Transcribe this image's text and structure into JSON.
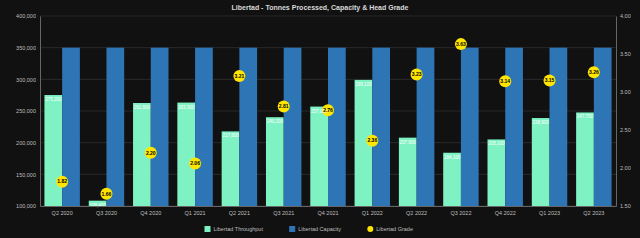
{
  "chart_data": {
    "type": "bar",
    "title": "Libertad - Tonnes Processed, Capacity & Head Grade",
    "categories": [
      "Q2 2020",
      "Q3 2020",
      "Q4 2020",
      "Q1 2021",
      "Q2 2021",
      "Q3 2021",
      "Q4 2021",
      "Q1 2022",
      "Q2 2022",
      "Q3 2022",
      "Q4 2022",
      "Q1 2023",
      "Q2 2023"
    ],
    "series": [
      {
        "name": "Libertad Throughput",
        "type": "bar",
        "color": "#7ff2c4",
        "data_labels": true,
        "values": [
          275200,
          108400,
          262600,
          263300,
          217800,
          240200,
          257000,
          299100,
          207900,
          184100,
          205100,
          238900,
          247700
        ],
        "value_labels": [
          "275,200",
          "108,400",
          "262,600",
          "263,300",
          "217,800",
          "240,200",
          "257,000",
          "299,100",
          "207,900",
          "184,100",
          "205,100",
          "238,900",
          "247,700"
        ]
      },
      {
        "name": "Libertad Capacity",
        "type": "bar",
        "color": "#2e75b6",
        "data_labels": false,
        "values": [
          350000,
          350000,
          350000,
          350000,
          350000,
          350000,
          350000,
          350000,
          350000,
          350000,
          350000,
          350000,
          350000
        ]
      },
      {
        "name": "Libertad Grade",
        "type": "scatter",
        "axis": "y2",
        "marker": "circle",
        "color": "#ffe600",
        "data_labels": true,
        "values": [
          1.82,
          1.66,
          2.2,
          2.06,
          3.21,
          2.81,
          2.76,
          2.36,
          3.23,
          3.63,
          3.14,
          3.15,
          3.26
        ],
        "value_labels": [
          "1.82",
          "1.66",
          "2.20",
          "2.06",
          "3.21",
          "2.81",
          "2.76",
          "2.36",
          "3.23",
          "3.63",
          "3.14",
          "3.15",
          "3.26"
        ]
      }
    ],
    "ylim": [
      100000,
      400000
    ],
    "yticks": [
      {
        "value": 100000,
        "label": "100,000"
      },
      {
        "value": 150000,
        "label": "150,000"
      },
      {
        "value": 200000,
        "label": "200,000"
      },
      {
        "value": 250000,
        "label": "250,000"
      },
      {
        "value": 300000,
        "label": "300,000"
      },
      {
        "value": 350000,
        "label": "350,000"
      },
      {
        "value": 400000,
        "label": "400,000"
      }
    ],
    "y2lim": [
      1.5,
      4.0
    ],
    "y2ticks": [
      {
        "value": 1.5,
        "label": "1.50"
      },
      {
        "value": 2.0,
        "label": "2.00"
      },
      {
        "value": 2.5,
        "label": "2.50"
      },
      {
        "value": 3.0,
        "label": "3.00"
      },
      {
        "value": 3.5,
        "label": "3.50"
      },
      {
        "value": 4.0,
        "label": "4.00"
      }
    ],
    "grid": true,
    "legend": "bottom"
  }
}
